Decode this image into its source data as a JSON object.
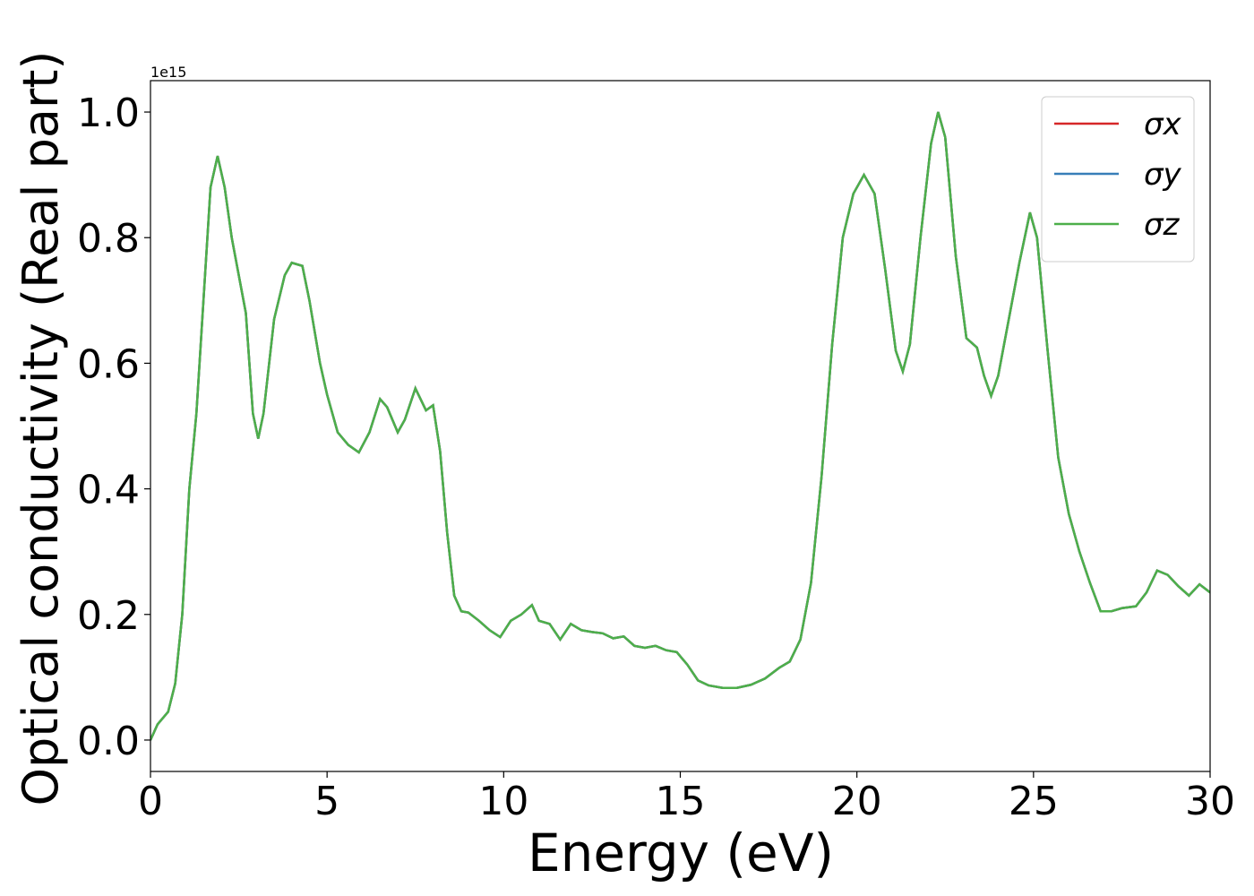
{
  "chart_data": {
    "type": "line",
    "xlabel": "Energy (eV)",
    "ylabel": "Optical conductivity (Real part)",
    "y_offset_label": "1e15",
    "xlim": [
      0,
      30
    ],
    "ylim": [
      -0.05,
      1.05
    ],
    "xticks": [
      0,
      5,
      10,
      15,
      20,
      25,
      30
    ],
    "yticks": [
      {
        "value": 0,
        "label": "0.0"
      },
      0.2,
      0.4,
      0.6,
      0.8,
      {
        "value": 1,
        "label": "1.0"
      }
    ],
    "legend": "upper right",
    "x": [
      0,
      0.2,
      0.5,
      0.7,
      0.9,
      1.1,
      1.3,
      1.5,
      1.7,
      1.9,
      2.1,
      2.3,
      2.5,
      2.7,
      2.9,
      3.05,
      3.2,
      3.5,
      3.8,
      4.0,
      4.3,
      4.5,
      4.8,
      5.0,
      5.3,
      5.6,
      5.9,
      6.2,
      6.5,
      6.7,
      7.0,
      7.2,
      7.5,
      7.8,
      8.0,
      8.2,
      8.4,
      8.6,
      8.8,
      9.0,
      9.3,
      9.6,
      9.9,
      10.2,
      10.5,
      10.8,
      11.0,
      11.3,
      11.6,
      11.9,
      12.2,
      12.5,
      12.8,
      13.1,
      13.4,
      13.7,
      14.0,
      14.3,
      14.6,
      14.9,
      15.2,
      15.5,
      15.8,
      16.2,
      16.6,
      17.0,
      17.4,
      17.8,
      18.1,
      18.4,
      18.7,
      19.0,
      19.3,
      19.6,
      19.9,
      20.2,
      20.5,
      20.8,
      21.1,
      21.3,
      21.5,
      21.8,
      22.1,
      22.3,
      22.5,
      22.8,
      23.1,
      23.4,
      23.6,
      23.8,
      24.0,
      24.3,
      24.6,
      24.9,
      25.1,
      25.4,
      25.7,
      26.0,
      26.3,
      26.6,
      26.9,
      27.2,
      27.5,
      27.9,
      28.2,
      28.5,
      28.8,
      29.1,
      29.4,
      29.7,
      30.0
    ],
    "series": [
      {
        "name": "σx",
        "color": "#d62728",
        "values": [
          0,
          0.025,
          0.045,
          0.09,
          0.2,
          0.4,
          0.52,
          0.7,
          0.88,
          0.93,
          0.88,
          0.8,
          0.74,
          0.68,
          0.52,
          0.48,
          0.52,
          0.67,
          0.74,
          0.76,
          0.755,
          0.7,
          0.6,
          0.55,
          0.49,
          0.47,
          0.458,
          0.49,
          0.543,
          0.53,
          0.49,
          0.51,
          0.56,
          0.525,
          0.533,
          0.46,
          0.33,
          0.23,
          0.205,
          0.203,
          0.19,
          0.175,
          0.164,
          0.19,
          0.2,
          0.215,
          0.19,
          0.185,
          0.16,
          0.185,
          0.175,
          0.172,
          0.17,
          0.162,
          0.165,
          0.15,
          0.147,
          0.15,
          0.143,
          0.14,
          0.12,
          0.095,
          0.087,
          0.083,
          0.083,
          0.088,
          0.098,
          0.115,
          0.125,
          0.16,
          0.25,
          0.42,
          0.63,
          0.8,
          0.87,
          0.9,
          0.87,
          0.75,
          0.62,
          0.587,
          0.63,
          0.8,
          0.95,
          1.0,
          0.96,
          0.77,
          0.64,
          0.625,
          0.58,
          0.548,
          0.58,
          0.67,
          0.76,
          0.84,
          0.8,
          0.62,
          0.45,
          0.36,
          0.3,
          0.25,
          0.205,
          0.205,
          0.21,
          0.213,
          0.235,
          0.27,
          0.263,
          0.245,
          0.23,
          0.248,
          0.235
        ]
      },
      {
        "name": "σy",
        "color": "#377eb8",
        "values": [
          0,
          0.025,
          0.045,
          0.09,
          0.2,
          0.4,
          0.52,
          0.7,
          0.88,
          0.93,
          0.88,
          0.8,
          0.74,
          0.68,
          0.52,
          0.48,
          0.52,
          0.67,
          0.74,
          0.76,
          0.755,
          0.7,
          0.6,
          0.55,
          0.49,
          0.47,
          0.458,
          0.49,
          0.543,
          0.53,
          0.49,
          0.51,
          0.56,
          0.525,
          0.533,
          0.46,
          0.33,
          0.23,
          0.205,
          0.203,
          0.19,
          0.175,
          0.164,
          0.19,
          0.2,
          0.215,
          0.19,
          0.185,
          0.16,
          0.185,
          0.175,
          0.172,
          0.17,
          0.162,
          0.165,
          0.15,
          0.147,
          0.15,
          0.143,
          0.14,
          0.12,
          0.095,
          0.087,
          0.083,
          0.083,
          0.088,
          0.098,
          0.115,
          0.125,
          0.16,
          0.25,
          0.42,
          0.63,
          0.8,
          0.87,
          0.9,
          0.87,
          0.75,
          0.62,
          0.587,
          0.63,
          0.8,
          0.95,
          1.0,
          0.96,
          0.77,
          0.64,
          0.625,
          0.58,
          0.548,
          0.58,
          0.67,
          0.76,
          0.84,
          0.8,
          0.62,
          0.45,
          0.36,
          0.3,
          0.25,
          0.205,
          0.205,
          0.21,
          0.213,
          0.235,
          0.27,
          0.263,
          0.245,
          0.23,
          0.248,
          0.235
        ]
      },
      {
        "name": "σz",
        "color": "#4daf4a",
        "values": [
          0,
          0.025,
          0.045,
          0.09,
          0.2,
          0.4,
          0.52,
          0.7,
          0.88,
          0.93,
          0.88,
          0.8,
          0.74,
          0.68,
          0.52,
          0.48,
          0.52,
          0.67,
          0.74,
          0.76,
          0.755,
          0.7,
          0.6,
          0.55,
          0.49,
          0.47,
          0.458,
          0.49,
          0.543,
          0.53,
          0.49,
          0.51,
          0.56,
          0.525,
          0.533,
          0.46,
          0.33,
          0.23,
          0.205,
          0.203,
          0.19,
          0.175,
          0.164,
          0.19,
          0.2,
          0.215,
          0.19,
          0.185,
          0.16,
          0.185,
          0.175,
          0.172,
          0.17,
          0.162,
          0.165,
          0.15,
          0.147,
          0.15,
          0.143,
          0.14,
          0.12,
          0.095,
          0.087,
          0.083,
          0.083,
          0.088,
          0.098,
          0.115,
          0.125,
          0.16,
          0.25,
          0.42,
          0.63,
          0.8,
          0.87,
          0.9,
          0.87,
          0.75,
          0.62,
          0.587,
          0.63,
          0.8,
          0.95,
          1.0,
          0.96,
          0.77,
          0.64,
          0.625,
          0.58,
          0.548,
          0.58,
          0.67,
          0.76,
          0.84,
          0.8,
          0.62,
          0.45,
          0.36,
          0.3,
          0.25,
          0.205,
          0.205,
          0.21,
          0.213,
          0.235,
          0.27,
          0.263,
          0.245,
          0.23,
          0.248,
          0.235
        ]
      }
    ]
  }
}
